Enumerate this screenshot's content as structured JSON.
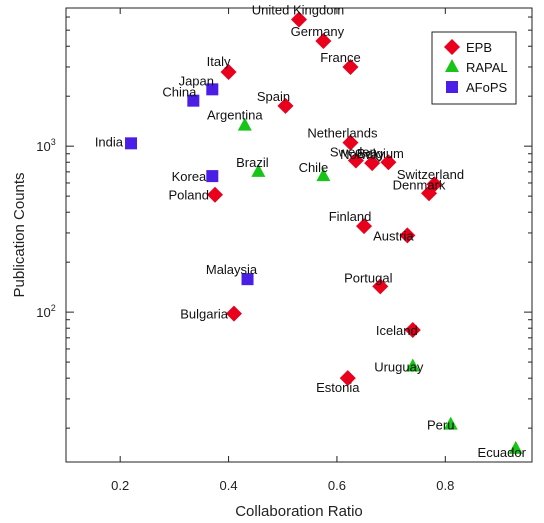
{
  "chart_data": {
    "type": "scatter",
    "title": "",
    "xlabel": "Collaboration Ratio",
    "ylabel": "Publication Counts",
    "xlim": [
      0.1,
      0.96
    ],
    "ylim": [
      12.5,
      6800
    ],
    "yscale": "log",
    "x_ticks": [
      {
        "value": 0.2,
        "label": "0.2"
      },
      {
        "value": 0.4,
        "label": "0.4"
      },
      {
        "value": 0.6,
        "label": "0.6"
      },
      {
        "value": 0.8,
        "label": "0.8"
      }
    ],
    "y_ticks": [
      {
        "value": 100,
        "label": "10",
        "exp": "2"
      },
      {
        "value": 1000,
        "label": "10",
        "exp": "3"
      }
    ],
    "legend_position": "top-right",
    "series": [
      {
        "name": "EPB",
        "marker": "diamond",
        "color": "#e8001c",
        "points": [
          {
            "label": "United Kingdom",
            "x": 0.53,
            "y": 5800
          },
          {
            "label": "Germany",
            "x": 0.575,
            "y": 4300
          },
          {
            "label": "France",
            "x": 0.625,
            "y": 3000
          },
          {
            "label": "Italy",
            "x": 0.4,
            "y": 2800
          },
          {
            "label": "Spain",
            "x": 0.505,
            "y": 1750
          },
          {
            "label": "Netherlands",
            "x": 0.625,
            "y": 1050
          },
          {
            "label": "Sweden",
            "x": 0.635,
            "y": 820
          },
          {
            "label": "Norway",
            "x": 0.665,
            "y": 790
          },
          {
            "label": "Belgium",
            "x": 0.695,
            "y": 800
          },
          {
            "label": "Switzerland",
            "x": 0.78,
            "y": 590
          },
          {
            "label": "Denmark",
            "x": 0.77,
            "y": 520
          },
          {
            "label": "Poland",
            "x": 0.375,
            "y": 510
          },
          {
            "label": "Finland",
            "x": 0.65,
            "y": 330
          },
          {
            "label": "Austria",
            "x": 0.73,
            "y": 290
          },
          {
            "label": "Portugal",
            "x": 0.68,
            "y": 143
          },
          {
            "label": "Bulgaria",
            "x": 0.41,
            "y": 98
          },
          {
            "label": "Iceland",
            "x": 0.74,
            "y": 78
          },
          {
            "label": "Estonia",
            "x": 0.62,
            "y": 40
          }
        ]
      },
      {
        "name": "RAPAL",
        "marker": "triangle",
        "color": "#19c419",
        "points": [
          {
            "label": "Argentina",
            "x": 0.43,
            "y": 1330
          },
          {
            "label": "Brazil",
            "x": 0.455,
            "y": 700
          },
          {
            "label": "Chile",
            "x": 0.575,
            "y": 660
          },
          {
            "label": "Uruguay",
            "x": 0.74,
            "y": 47
          },
          {
            "label": "Peru",
            "x": 0.81,
            "y": 21
          },
          {
            "label": "Ecuador",
            "x": 0.93,
            "y": 15
          }
        ]
      },
      {
        "name": "AFoPS",
        "marker": "square",
        "color": "#4b1ee6",
        "points": [
          {
            "label": "Japan",
            "x": 0.37,
            "y": 2200
          },
          {
            "label": "China",
            "x": 0.335,
            "y": 1880
          },
          {
            "label": "India",
            "x": 0.22,
            "y": 1040
          },
          {
            "label": "Korea",
            "x": 0.37,
            "y": 660
          },
          {
            "label": "Malaysia",
            "x": 0.435,
            "y": 158
          }
        ]
      }
    ]
  }
}
